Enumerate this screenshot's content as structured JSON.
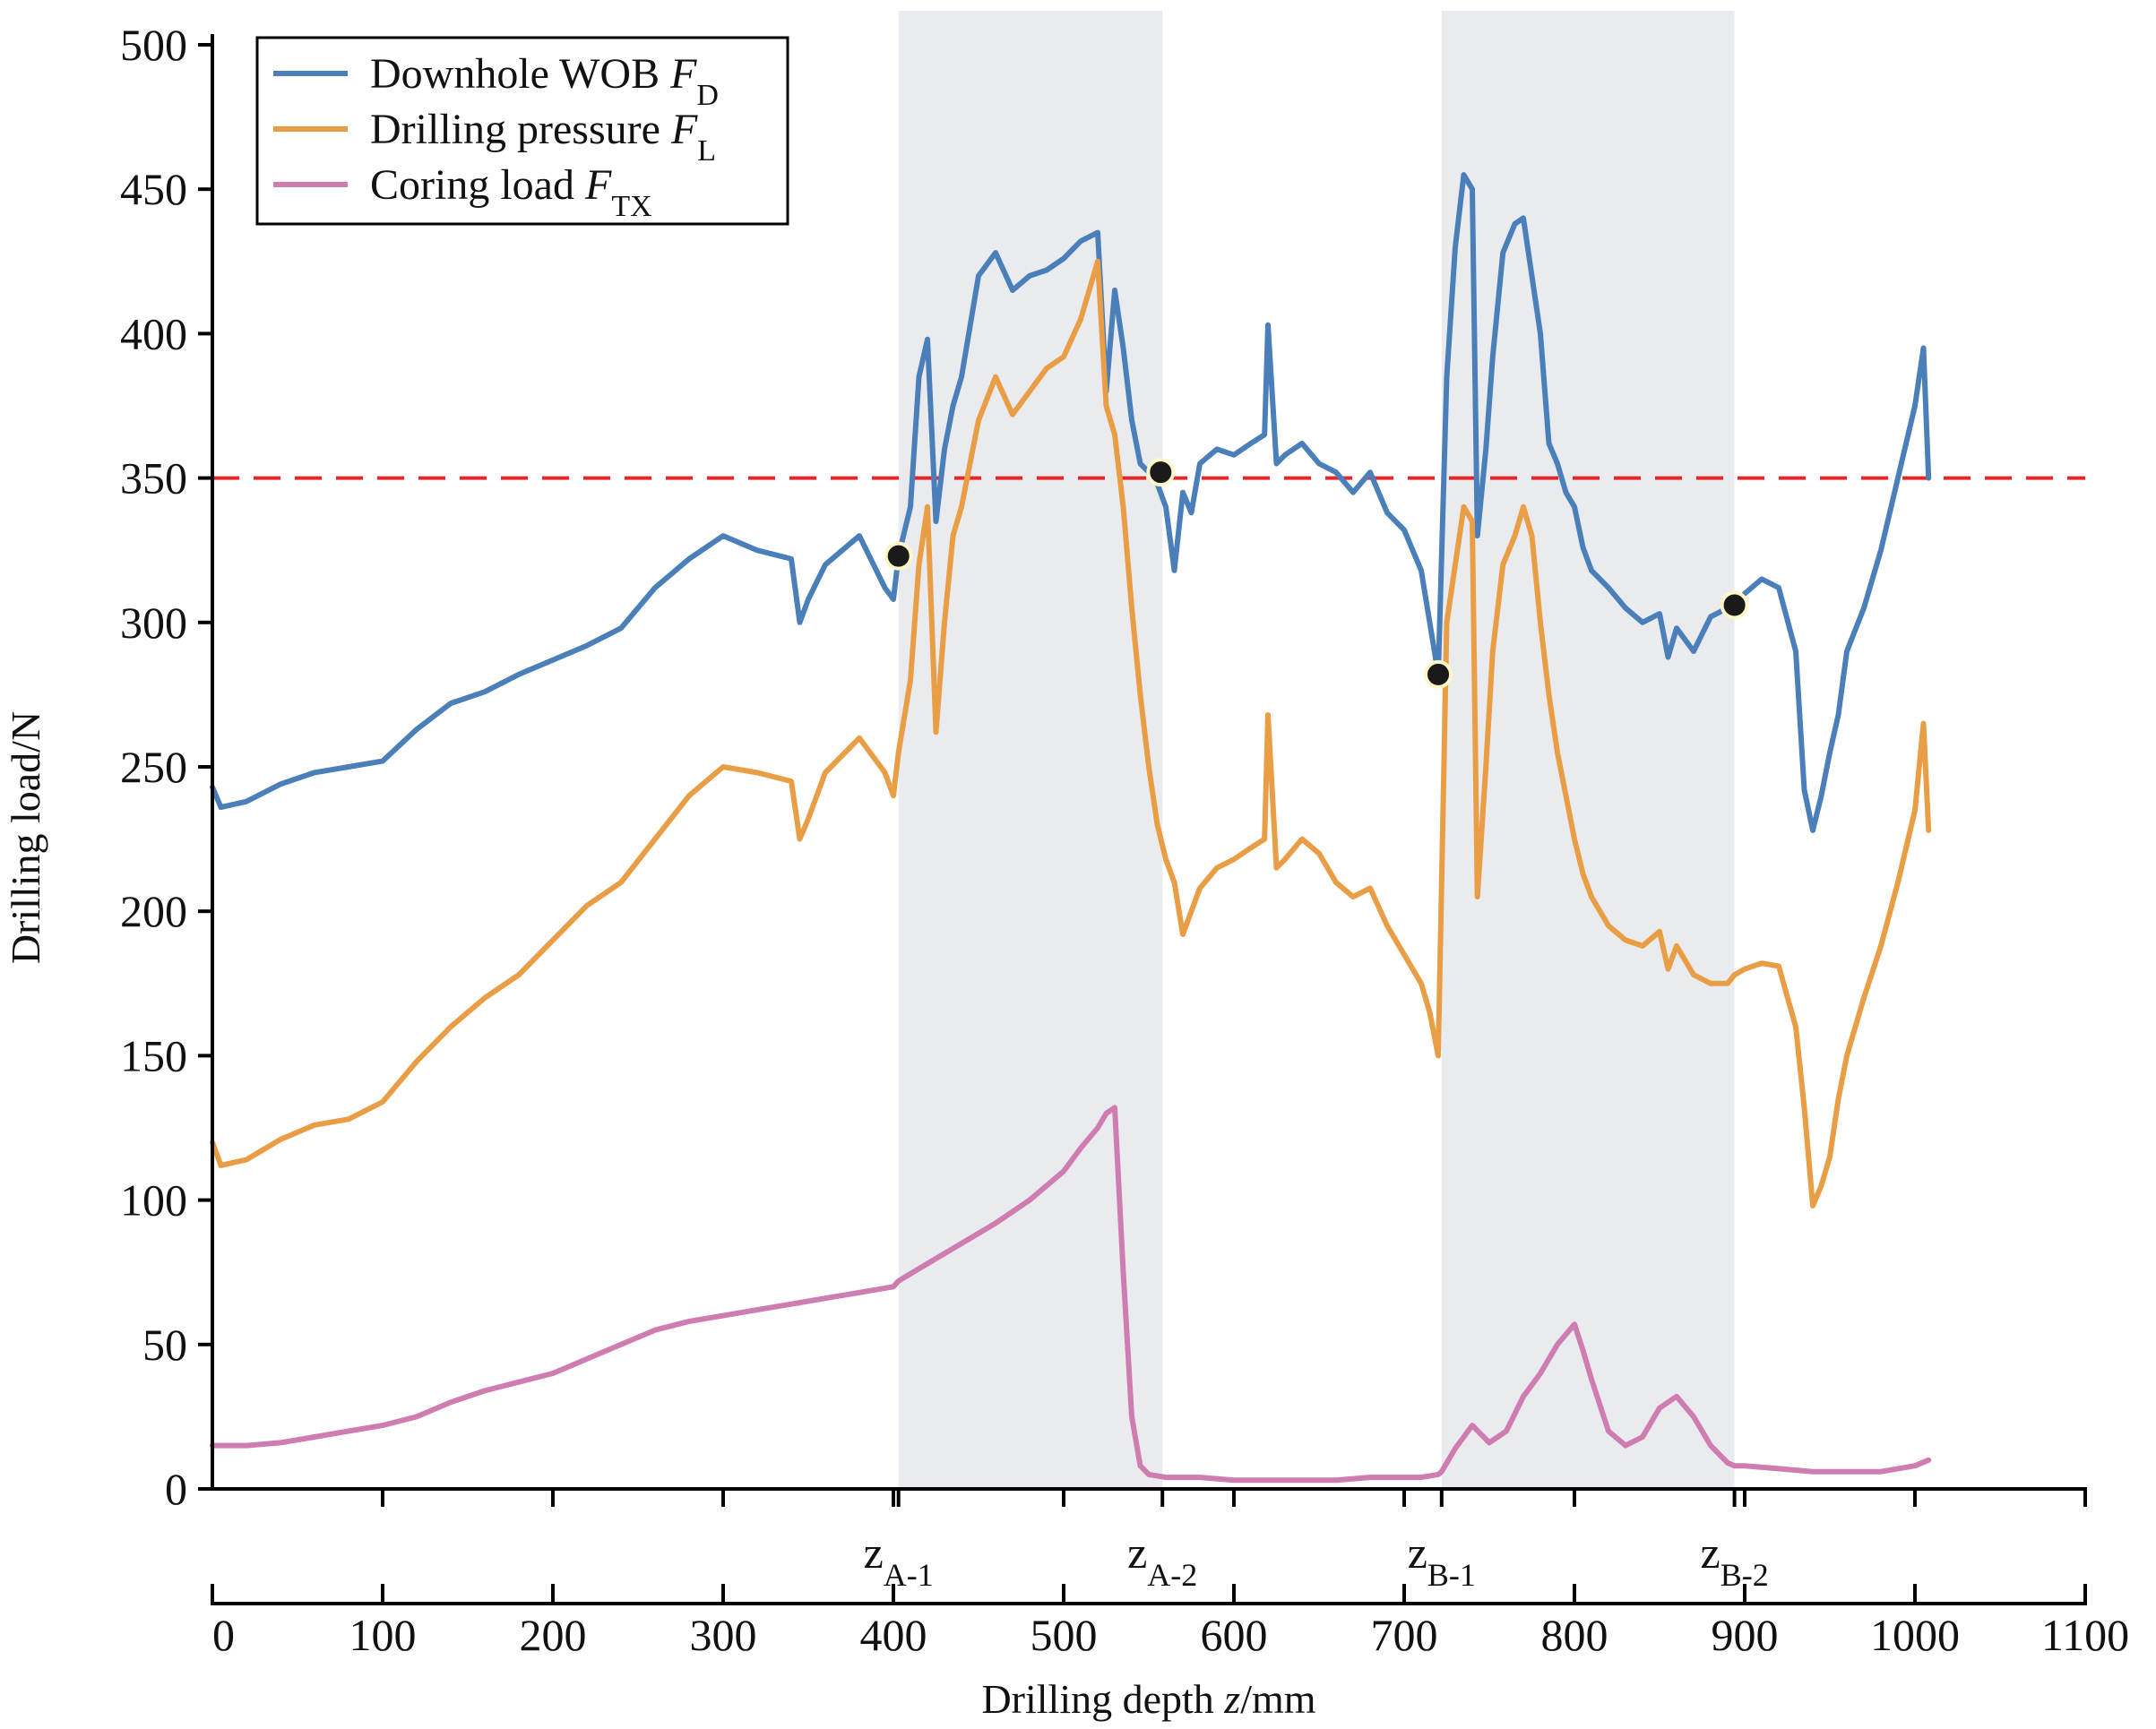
{
  "chart_data": {
    "type": "line",
    "title": "",
    "xlabel": "Drilling depth z/mm",
    "xlabel_prefix": "Drilling depth ",
    "xlabel_var": "z",
    "xlabel_unit": "/mm",
    "ylabel": "Drilling load/N",
    "xlim": [
      0,
      1100
    ],
    "ylim": [
      0,
      500
    ],
    "x_ticks": [
      0,
      100,
      200,
      300,
      400,
      500,
      600,
      700,
      800,
      900,
      1000,
      1100
    ],
    "y_ticks": [
      0,
      50,
      100,
      150,
      200,
      250,
      300,
      350,
      400,
      450,
      500
    ],
    "threshold": {
      "value": 350,
      "color": "#e8262a",
      "style": "dashed"
    },
    "shaded_regions": [
      {
        "x0": 403,
        "x1": 558,
        "color": "#e9ebee"
      },
      {
        "x0": 722,
        "x1": 894,
        "color": "#e9ebee"
      }
    ],
    "zone_markers": [
      {
        "label": "z",
        "sub": "A-1",
        "x": 403
      },
      {
        "label": "z",
        "sub": "A-2",
        "x": 558
      },
      {
        "label": "z",
        "sub": "B-1",
        "x": 722
      },
      {
        "label": "z",
        "sub": "B-2",
        "x": 894
      }
    ],
    "key_points": [
      {
        "x": 403,
        "y": 323
      },
      {
        "x": 557,
        "y": 352
      },
      {
        "x": 720,
        "y": 282
      },
      {
        "x": 894,
        "y": 306
      }
    ],
    "legend": {
      "position": "top-left",
      "entries": [
        {
          "text": "Downhole WOB ",
          "symbol": "F",
          "sub": "D",
          "color": "#4a7fb9"
        },
        {
          "text": "Drilling pressure ",
          "symbol": "F",
          "sub": "L",
          "color": "#e99d45"
        },
        {
          "text": "Coring load ",
          "symbol": "F",
          "sub": "TX",
          "color": "#cf7cb0"
        }
      ]
    },
    "series": [
      {
        "name": "Downhole WOB F_D",
        "color": "#4a7fb9",
        "x": [
          0,
          5,
          20,
          40,
          60,
          80,
          100,
          120,
          140,
          160,
          180,
          200,
          220,
          240,
          260,
          280,
          300,
          320,
          340,
          345,
          350,
          360,
          380,
          395,
          400,
          403,
          410,
          415,
          420,
          425,
          430,
          435,
          440,
          450,
          460,
          470,
          480,
          490,
          500,
          510,
          520,
          525,
          530,
          535,
          540,
          545,
          550,
          555,
          560,
          565,
          570,
          575,
          580,
          590,
          600,
          610,
          618,
          620,
          625,
          630,
          640,
          650,
          660,
          670,
          680,
          690,
          700,
          710,
          715,
          720,
          725,
          730,
          735,
          740,
          743,
          748,
          752,
          758,
          765,
          770,
          775,
          780,
          785,
          790,
          795,
          800,
          805,
          810,
          820,
          830,
          840,
          850,
          855,
          860,
          870,
          880,
          890,
          894,
          900,
          910,
          920,
          930,
          935,
          940,
          945,
          950,
          955,
          960,
          970,
          980,
          990,
          1000,
          1005,
          1008
        ],
        "y": [
          243,
          236,
          238,
          244,
          248,
          250,
          252,
          263,
          272,
          276,
          282,
          287,
          292,
          298,
          312,
          322,
          330,
          325,
          322,
          300,
          308,
          320,
          330,
          312,
          308,
          323,
          340,
          385,
          398,
          335,
          360,
          375,
          385,
          420,
          428,
          415,
          420,
          422,
          426,
          432,
          435,
          380,
          415,
          395,
          370,
          355,
          352,
          348,
          340,
          318,
          345,
          338,
          355,
          360,
          358,
          362,
          365,
          403,
          355,
          358,
          362,
          355,
          352,
          345,
          352,
          338,
          332,
          318,
          300,
          282,
          385,
          430,
          455,
          450,
          330,
          360,
          392,
          428,
          438,
          440,
          420,
          400,
          362,
          355,
          345,
          340,
          326,
          318,
          312,
          305,
          300,
          303,
          288,
          298,
          290,
          302,
          305,
          306,
          310,
          315,
          312,
          290,
          242,
          228,
          240,
          255,
          268,
          290,
          305,
          325,
          350,
          375,
          395,
          350
        ]
      },
      {
        "name": "Drilling pressure F_L",
        "color": "#e99d45",
        "x": [
          0,
          5,
          20,
          40,
          60,
          80,
          100,
          120,
          140,
          160,
          180,
          200,
          220,
          240,
          260,
          280,
          300,
          320,
          340,
          345,
          350,
          360,
          380,
          395,
          400,
          403,
          410,
          415,
          420,
          425,
          430,
          435,
          440,
          450,
          460,
          470,
          480,
          490,
          500,
          510,
          520,
          525,
          530,
          535,
          540,
          545,
          550,
          555,
          560,
          565,
          570,
          575,
          580,
          590,
          600,
          610,
          618,
          620,
          625,
          630,
          640,
          650,
          660,
          670,
          680,
          690,
          700,
          710,
          715,
          720,
          725,
          730,
          735,
          740,
          743,
          748,
          752,
          758,
          765,
          770,
          775,
          780,
          785,
          790,
          795,
          800,
          805,
          810,
          820,
          830,
          840,
          850,
          855,
          860,
          870,
          880,
          890,
          894,
          900,
          910,
          920,
          930,
          935,
          940,
          945,
          950,
          955,
          960,
          970,
          980,
          990,
          1000,
          1005,
          1008
        ],
        "y": [
          120,
          112,
          114,
          121,
          126,
          128,
          134,
          148,
          160,
          170,
          178,
          190,
          202,
          210,
          225,
          240,
          250,
          248,
          245,
          225,
          232,
          248,
          260,
          248,
          240,
          255,
          280,
          320,
          340,
          262,
          300,
          330,
          340,
          370,
          385,
          372,
          380,
          388,
          392,
          405,
          425,
          375,
          365,
          340,
          305,
          275,
          250,
          230,
          218,
          210,
          192,
          200,
          208,
          215,
          218,
          222,
          225,
          268,
          215,
          218,
          225,
          220,
          210,
          205,
          208,
          195,
          185,
          175,
          165,
          150,
          300,
          320,
          340,
          335,
          205,
          250,
          290,
          320,
          330,
          340,
          330,
          300,
          275,
          255,
          240,
          225,
          213,
          205,
          195,
          190,
          188,
          193,
          180,
          188,
          178,
          175,
          175,
          178,
          180,
          182,
          181,
          160,
          132,
          98,
          105,
          115,
          135,
          150,
          170,
          188,
          210,
          235,
          265,
          228
        ]
      },
      {
        "name": "Coring load F_TX",
        "color": "#cf7cb0",
        "x": [
          0,
          20,
          40,
          60,
          80,
          100,
          120,
          140,
          160,
          180,
          200,
          220,
          240,
          260,
          280,
          300,
          320,
          340,
          360,
          380,
          400,
          403,
          420,
          440,
          460,
          480,
          500,
          510,
          520,
          525,
          530,
          535,
          540,
          545,
          550,
          560,
          580,
          600,
          620,
          640,
          660,
          680,
          700,
          710,
          720,
          722,
          730,
          740,
          750,
          760,
          770,
          780,
          790,
          800,
          805,
          810,
          820,
          830,
          840,
          850,
          860,
          870,
          880,
          890,
          894,
          900,
          920,
          940,
          960,
          980,
          1000,
          1008
        ],
        "y": [
          15,
          15,
          16,
          18,
          20,
          22,
          25,
          30,
          34,
          37,
          40,
          45,
          50,
          55,
          58,
          60,
          62,
          64,
          66,
          68,
          70,
          72,
          78,
          85,
          92,
          100,
          110,
          118,
          125,
          130,
          132,
          75,
          25,
          8,
          5,
          4,
          4,
          3,
          3,
          3,
          3,
          4,
          4,
          4,
          5,
          6,
          14,
          22,
          16,
          20,
          32,
          40,
          50,
          57,
          48,
          38,
          20,
          15,
          18,
          28,
          32,
          25,
          15,
          9,
          8,
          8,
          7,
          6,
          6,
          6,
          8,
          10
        ]
      }
    ]
  }
}
